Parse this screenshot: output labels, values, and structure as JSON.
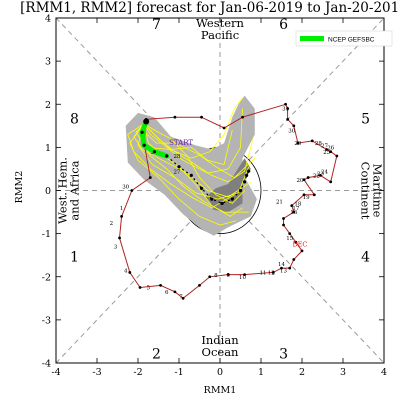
{
  "chart_data": {
    "type": "phase_diagram",
    "title": "[RMM1, RMM2] forecast for Jan-06-2019 to Jan-20-2019",
    "xlabel": "RMM1",
    "ylabel": "RMM2",
    "xlim": [
      -4,
      4
    ],
    "ylim": [
      -4,
      4
    ],
    "x_ticks": [
      -4,
      -3,
      -2,
      -1,
      0,
      1,
      2,
      3,
      4
    ],
    "y_ticks": [
      -4,
      -3,
      -2,
      -1,
      0,
      1,
      2,
      3,
      4
    ],
    "colors": {
      "observed": "#b22222",
      "ensemble_mean": "#00ee00",
      "members": "#ffff00",
      "spread_light": "#b4b4b4",
      "spread_dark": "#7f7f7f",
      "start_label": "#6a1aa8",
      "month_label": "#ee1111"
    },
    "phases": [
      {
        "label": "1",
        "x": -3.55,
        "y": -1.65
      },
      {
        "label": "2",
        "x": -1.55,
        "y": -3.9
      },
      {
        "label": "3",
        "x": 1.55,
        "y": -3.9
      },
      {
        "label": "4",
        "x": 3.55,
        "y": -1.65
      },
      {
        "label": "5",
        "x": 3.55,
        "y": 1.55
      },
      {
        "label": "6",
        "x": 1.55,
        "y": 3.75
      },
      {
        "label": "7",
        "x": -1.55,
        "y": 3.75
      },
      {
        "label": "8",
        "x": -3.55,
        "y": 1.55
      }
    ],
    "regions": [
      {
        "lines": [
          "Western",
          "Pacific"
        ],
        "x": 0,
        "y": 3.7,
        "rotate": 0
      },
      {
        "lines": [
          "Indian",
          "Ocean"
        ],
        "x": 0,
        "y": -3.65,
        "rotate": 0
      },
      {
        "lines": [
          "West. Hem.",
          "and Africa"
        ],
        "x": -3.65,
        "y": 0,
        "rotate": -90
      },
      {
        "lines": [
          "Maritime",
          "Continent"
        ],
        "x": 3.65,
        "y": 0,
        "rotate": 90
      }
    ],
    "legend": {
      "label": "NCEP GEFSBC",
      "position": "top-right"
    },
    "start_label": {
      "text": "START",
      "x": -0.95,
      "y": 1.05
    },
    "month_label": {
      "text": "DEC",
      "x": 1.95,
      "y": -1.3
    },
    "observed": {
      "name": "DEC",
      "points": [
        [
          1.85,
          -1.2
        ],
        [
          1.7,
          -1.0
        ],
        [
          1.55,
          -0.8
        ],
        [
          1.55,
          -0.65
        ],
        [
          1.8,
          -0.5
        ],
        [
          1.75,
          -0.35
        ],
        [
          2.05,
          -0.1
        ],
        [
          2.3,
          -0.1
        ],
        [
          2.05,
          0.25
        ],
        [
          2.15,
          0.3
        ],
        [
          2.45,
          0.35
        ],
        [
          2.7,
          0.2
        ],
        [
          2.85,
          0.8
        ],
        [
          2.7,
          0.9
        ],
        [
          2.6,
          0.95
        ],
        [
          2.25,
          1.15
        ],
        [
          1.9,
          1.1
        ],
        [
          1.8,
          1.5
        ],
        [
          1.65,
          1.65
        ],
        [
          1.65,
          1.9
        ],
        [
          1.6,
          2.0
        ],
        [
          0.55,
          1.7
        ],
        [
          0.1,
          1.45
        ],
        [
          -0.45,
          1.7
        ],
        [
          -1.1,
          1.7
        ],
        [
          -1.8,
          1.65
        ],
        [
          -1.85,
          1.1
        ],
        [
          -1.7,
          0.3
        ],
        [
          -2.15,
          0.0
        ],
        [
          -2.4,
          -0.6
        ],
        [
          -2.45,
          -1.1
        ],
        [
          -2.2,
          -1.9
        ],
        [
          -1.95,
          -2.25
        ],
        [
          -1.45,
          -2.2
        ],
        [
          -1.1,
          -2.35
        ],
        [
          -0.9,
          -2.5
        ],
        [
          -0.5,
          -2.2
        ],
        [
          -0.25,
          -2.0
        ],
        [
          0.2,
          -1.95
        ],
        [
          0.6,
          -1.95
        ],
        [
          1.3,
          -1.9
        ],
        [
          1.5,
          -1.8
        ],
        [
          1.7,
          -1.8
        ],
        [
          1.8,
          -1.6
        ],
        [
          2.0,
          -1.4
        ],
        [
          1.85,
          -1.2
        ]
      ],
      "day_labels": [
        {
          "text": "31",
          "x": 1.6,
          "y": 1.85
        },
        {
          "text": "30",
          "x": 1.75,
          "y": 1.35
        },
        {
          "text": "29",
          "x": 1.9,
          "y": 1.05
        },
        {
          "text": "28",
          "x": 2.4,
          "y": 1.05
        },
        {
          "text": "27",
          "x": 2.55,
          "y": 1.0
        },
        {
          "text": "26",
          "x": 2.7,
          "y": 0.95
        },
        {
          "text": "25",
          "x": 2.6,
          "y": 0.85
        },
        {
          "text": "24",
          "x": 2.55,
          "y": 0.4
        },
        {
          "text": "23",
          "x": 2.45,
          "y": 0.35
        },
        {
          "text": "22",
          "x": 2.35,
          "y": 0.3
        },
        {
          "text": "20",
          "x": 1.95,
          "y": 0.2
        },
        {
          "text": "19",
          "x": 2.1,
          "y": -0.2
        },
        {
          "text": "21",
          "x": 1.45,
          "y": -0.3
        },
        {
          "text": "18",
          "x": 1.9,
          "y": -0.35
        },
        {
          "text": "17",
          "x": 1.85,
          "y": -0.45
        },
        {
          "text": "16",
          "x": 1.8,
          "y": -0.55
        },
        {
          "text": "15",
          "x": 1.7,
          "y": -1.15
        },
        {
          "text": "14",
          "x": 1.5,
          "y": -1.75
        },
        {
          "text": "13",
          "x": 1.55,
          "y": -1.9
        },
        {
          "text": "12",
          "x": 1.25,
          "y": -1.95
        },
        {
          "text": "11",
          "x": 1.05,
          "y": -1.95
        },
        {
          "text": "10",
          "x": 0.55,
          "y": -2.05
        },
        {
          "text": "9",
          "x": 0.2,
          "y": -2.0
        },
        {
          "text": "8",
          "x": -0.1,
          "y": -2.0
        },
        {
          "text": "7",
          "x": -0.95,
          "y": -2.5
        },
        {
          "text": "6",
          "x": -1.3,
          "y": -2.4
        },
        {
          "text": "5",
          "x": -1.75,
          "y": -2.3
        },
        {
          "text": "4",
          "x": -2.3,
          "y": -1.9
        },
        {
          "text": "3",
          "x": -2.55,
          "y": -1.35
        },
        {
          "text": "2",
          "x": -2.65,
          "y": -0.8
        },
        {
          "text": "1",
          "x": -2.4,
          "y": -0.45
        },
        {
          "text": "30",
          "x": -2.3,
          "y": 0.05
        },
        {
          "text": "29",
          "x": -1.6,
          "y": 0.85
        },
        {
          "text": "28",
          "x": -1.05,
          "y": 0.75
        },
        {
          "text": "27",
          "x": -1.05,
          "y": 0.4
        }
      ]
    },
    "ensemble_mean": {
      "name": "NCEP GEFSBC",
      "points": [
        [
          -1.8,
          1.6
        ],
        [
          -1.9,
          1.35
        ],
        [
          -1.85,
          1.05
        ],
        [
          -1.6,
          0.9
        ],
        [
          -1.3,
          0.8
        ],
        [
          -1.0,
          0.55
        ],
        [
          -0.7,
          0.35
        ],
        [
          -0.45,
          0.05
        ],
        [
          -0.2,
          -0.2
        ],
        [
          0.05,
          -0.3
        ],
        [
          0.3,
          -0.2
        ],
        [
          0.5,
          0.0
        ],
        [
          0.6,
          0.2
        ],
        [
          0.65,
          0.35
        ],
        [
          0.7,
          0.45
        ]
      ]
    },
    "spread": {
      "light": [
        [
          -2.3,
          1.5
        ],
        [
          -2.0,
          1.8
        ],
        [
          -1.6,
          1.7
        ],
        [
          -1.2,
          1.25
        ],
        [
          -0.6,
          1.05
        ],
        [
          -0.2,
          0.95
        ],
        [
          0.1,
          1.1
        ],
        [
          0.3,
          1.7
        ],
        [
          0.45,
          2.0
        ],
        [
          0.6,
          2.2
        ],
        [
          0.85,
          1.9
        ],
        [
          0.85,
          1.3
        ],
        [
          0.55,
          0.75
        ],
        [
          0.55,
          0.4
        ],
        [
          0.9,
          -0.2
        ],
        [
          0.75,
          -0.6
        ],
        [
          0.2,
          -0.85
        ],
        [
          -0.15,
          -1.05
        ],
        [
          -0.45,
          -0.9
        ],
        [
          -0.9,
          -0.55
        ],
        [
          -1.35,
          -0.1
        ],
        [
          -1.85,
          0.25
        ],
        [
          -2.25,
          0.65
        ],
        [
          -2.3,
          1.5
        ]
      ],
      "dark": [
        [
          -0.1,
          0.05
        ],
        [
          0.2,
          0.15
        ],
        [
          0.4,
          0.45
        ],
        [
          0.6,
          0.75
        ],
        [
          0.75,
          0.5
        ],
        [
          0.55,
          0.15
        ],
        [
          0.55,
          -0.3
        ],
        [
          0.2,
          -0.5
        ],
        [
          -0.15,
          -0.45
        ],
        [
          -0.35,
          -0.15
        ],
        [
          -0.1,
          0.05
        ]
      ]
    },
    "members": [
      [
        [
          -1.85,
          1.55
        ],
        [
          -1.5,
          1.2
        ],
        [
          -1.1,
          0.9
        ],
        [
          -0.6,
          0.6
        ],
        [
          -0.2,
          0.35
        ],
        [
          0.2,
          0.2
        ],
        [
          0.6,
          0.45
        ],
        [
          0.8,
          1.2
        ]
      ],
      [
        [
          -1.85,
          1.55
        ],
        [
          -1.9,
          1.2
        ],
        [
          -1.7,
          0.8
        ],
        [
          -1.3,
          0.5
        ],
        [
          -0.9,
          0.1
        ],
        [
          -0.4,
          -0.25
        ],
        [
          0.1,
          -0.5
        ],
        [
          0.7,
          -0.5
        ]
      ],
      [
        [
          -1.85,
          1.55
        ],
        [
          -2.05,
          1.35
        ],
        [
          -1.8,
          1.0
        ],
        [
          -1.2,
          0.95
        ],
        [
          -0.7,
          1.0
        ],
        [
          -0.3,
          0.7
        ],
        [
          0.1,
          0.6
        ],
        [
          0.3,
          1.4
        ]
      ],
      [
        [
          -1.85,
          1.55
        ],
        [
          -1.6,
          1.4
        ],
        [
          -1.2,
          1.2
        ],
        [
          -0.8,
          0.8
        ],
        [
          -0.5,
          0.3
        ],
        [
          -0.1,
          -0.1
        ],
        [
          0.3,
          -0.3
        ],
        [
          0.6,
          0.0
        ]
      ],
      [
        [
          -1.85,
          1.55
        ],
        [
          -2.2,
          1.1
        ],
        [
          -2.0,
          0.7
        ],
        [
          -1.5,
          0.3
        ],
        [
          -1.0,
          -0.2
        ],
        [
          -0.5,
          -0.6
        ],
        [
          0.0,
          -0.8
        ],
        [
          0.4,
          -0.7
        ]
      ],
      [
        [
          -1.85,
          1.55
        ],
        [
          -1.7,
          1.3
        ],
        [
          -1.3,
          1.0
        ],
        [
          -0.9,
          0.7
        ],
        [
          -0.3,
          0.4
        ],
        [
          0.2,
          0.5
        ],
        [
          0.5,
          1.0
        ],
        [
          0.55,
          1.9
        ]
      ],
      [
        [
          -1.85,
          1.55
        ],
        [
          -2.1,
          1.25
        ],
        [
          -1.9,
          0.95
        ],
        [
          -1.4,
          0.7
        ],
        [
          -0.8,
          0.4
        ],
        [
          -0.3,
          0.0
        ],
        [
          0.2,
          -0.15
        ],
        [
          0.75,
          0.2
        ]
      ],
      [
        [
          -1.85,
          1.55
        ],
        [
          -1.75,
          1.1
        ],
        [
          -1.45,
          0.85
        ],
        [
          -1.0,
          0.55
        ],
        [
          -0.6,
          0.15
        ],
        [
          -0.2,
          -0.35
        ],
        [
          0.25,
          -0.6
        ],
        [
          0.55,
          -0.4
        ]
      ],
      [
        [
          -1.85,
          1.55
        ],
        [
          -1.95,
          1.45
        ],
        [
          -1.55,
          1.1
        ],
        [
          -1.1,
          1.1
        ],
        [
          -0.55,
          0.85
        ],
        [
          -0.1,
          0.55
        ],
        [
          0.35,
          0.3
        ],
        [
          0.85,
          0.75
        ]
      ],
      [
        [
          -1.85,
          1.55
        ],
        [
          -2.25,
          1.3
        ],
        [
          -2.1,
          0.9
        ],
        [
          -1.7,
          0.5
        ],
        [
          -1.2,
          0.15
        ],
        [
          -0.7,
          -0.15
        ],
        [
          -0.2,
          -0.4
        ],
        [
          0.35,
          -0.1
        ]
      ],
      [
        [
          -1.85,
          1.55
        ],
        [
          -1.55,
          1.25
        ],
        [
          -1.2,
          0.95
        ],
        [
          -0.7,
          0.75
        ],
        [
          -0.25,
          0.9
        ],
        [
          0.1,
          1.3
        ],
        [
          0.35,
          1.9
        ],
        [
          0.55,
          2.15
        ]
      ],
      [
        [
          -1.85,
          1.55
        ],
        [
          -2.0,
          1.05
        ],
        [
          -1.65,
          0.6
        ],
        [
          -1.1,
          0.3
        ],
        [
          -0.6,
          -0.05
        ],
        [
          -0.05,
          -0.2
        ],
        [
          0.45,
          -0.05
        ],
        [
          0.7,
          0.55
        ]
      ]
    ]
  }
}
